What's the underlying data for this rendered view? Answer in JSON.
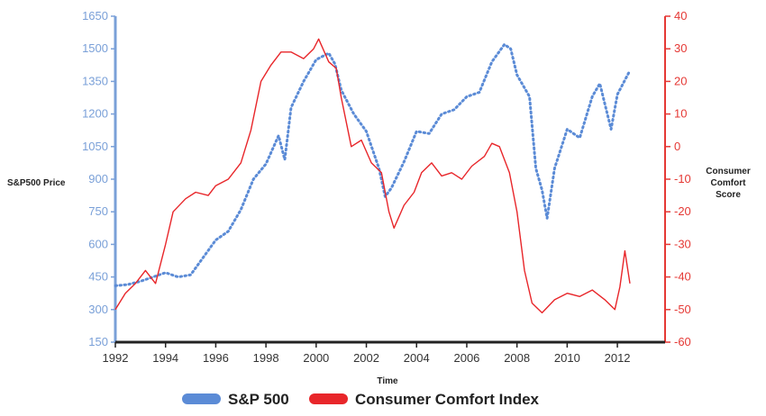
{
  "chart_data": {
    "type": "line",
    "title": "",
    "xlabel": "Time",
    "ylabel_left": "S&P500 Price",
    "ylabel_right": [
      "Consumer",
      "Comfort",
      "Score"
    ],
    "x_ticks": [
      "1992",
      "1994",
      "1996",
      "1998",
      "2000",
      "2002",
      "2004",
      "2006",
      "2008",
      "2010",
      "2012"
    ],
    "y_left_ticks": [
      "150",
      "300",
      "450",
      "600",
      "750",
      "900",
      "1050",
      "1200",
      "1350",
      "1500",
      "1650"
    ],
    "y_right_ticks": [
      "-60",
      "-50",
      "-40",
      "-30",
      "-20",
      "-10",
      "0",
      "10",
      "20",
      "30",
      "40"
    ],
    "x_range": [
      1992,
      2013.9
    ],
    "y_left_range": [
      150,
      1650
    ],
    "y_right_range": [
      -60,
      40
    ],
    "legend_position": "bottom",
    "series": [
      {
        "name": "S&P 500",
        "axis": "left",
        "color": "#5b8bd6",
        "style": "dotted",
        "points": [
          [
            1992.0,
            410
          ],
          [
            1992.5,
            415
          ],
          [
            1993.0,
            430
          ],
          [
            1993.5,
            450
          ],
          [
            1994.0,
            470
          ],
          [
            1994.5,
            450
          ],
          [
            1995.0,
            460
          ],
          [
            1995.5,
            540
          ],
          [
            1996.0,
            620
          ],
          [
            1996.5,
            660
          ],
          [
            1997.0,
            760
          ],
          [
            1997.5,
            900
          ],
          [
            1998.0,
            970
          ],
          [
            1998.5,
            1100
          ],
          [
            1998.75,
            990
          ],
          [
            1999.0,
            1230
          ],
          [
            1999.5,
            1350
          ],
          [
            2000.0,
            1450
          ],
          [
            2000.5,
            1480
          ],
          [
            2000.75,
            1430
          ],
          [
            2001.0,
            1310
          ],
          [
            2001.5,
            1200
          ],
          [
            2002.0,
            1120
          ],
          [
            2002.5,
            950
          ],
          [
            2002.75,
            820
          ],
          [
            2003.0,
            860
          ],
          [
            2003.5,
            980
          ],
          [
            2004.0,
            1120
          ],
          [
            2004.5,
            1110
          ],
          [
            2005.0,
            1200
          ],
          [
            2005.5,
            1220
          ],
          [
            2006.0,
            1280
          ],
          [
            2006.5,
            1300
          ],
          [
            2007.0,
            1440
          ],
          [
            2007.5,
            1520
          ],
          [
            2007.75,
            1500
          ],
          [
            2008.0,
            1380
          ],
          [
            2008.5,
            1280
          ],
          [
            2008.75,
            950
          ],
          [
            2009.0,
            850
          ],
          [
            2009.2,
            720
          ],
          [
            2009.5,
            950
          ],
          [
            2010.0,
            1130
          ],
          [
            2010.5,
            1090
          ],
          [
            2011.0,
            1280
          ],
          [
            2011.3,
            1340
          ],
          [
            2011.75,
            1130
          ],
          [
            2012.0,
            1290
          ],
          [
            2012.5,
            1400
          ]
        ]
      },
      {
        "name": "Consumer Comfort Index",
        "axis": "right",
        "color": "#e8262a",
        "style": "solid",
        "points": [
          [
            1992.0,
            -50
          ],
          [
            1992.4,
            -45
          ],
          [
            1992.8,
            -42
          ],
          [
            1993.2,
            -38
          ],
          [
            1993.6,
            -42
          ],
          [
            1994.0,
            -30
          ],
          [
            1994.3,
            -20
          ],
          [
            1994.8,
            -16
          ],
          [
            1995.2,
            -14
          ],
          [
            1995.7,
            -15
          ],
          [
            1996.0,
            -12
          ],
          [
            1996.5,
            -10
          ],
          [
            1997.0,
            -5
          ],
          [
            1997.4,
            5
          ],
          [
            1997.8,
            20
          ],
          [
            1998.2,
            25
          ],
          [
            1998.6,
            29
          ],
          [
            1999.0,
            29
          ],
          [
            1999.5,
            27
          ],
          [
            1999.9,
            30
          ],
          [
            2000.1,
            33
          ],
          [
            2000.5,
            26
          ],
          [
            2000.8,
            24
          ],
          [
            2001.0,
            15
          ],
          [
            2001.4,
            0
          ],
          [
            2001.8,
            2
          ],
          [
            2002.2,
            -5
          ],
          [
            2002.6,
            -8
          ],
          [
            2002.9,
            -20
          ],
          [
            2003.1,
            -25
          ],
          [
            2003.5,
            -18
          ],
          [
            2003.9,
            -14
          ],
          [
            2004.2,
            -8
          ],
          [
            2004.6,
            -5
          ],
          [
            2005.0,
            -9
          ],
          [
            2005.4,
            -8
          ],
          [
            2005.8,
            -10
          ],
          [
            2006.2,
            -6
          ],
          [
            2006.7,
            -3
          ],
          [
            2007.0,
            1
          ],
          [
            2007.3,
            0
          ],
          [
            2007.7,
            -8
          ],
          [
            2008.0,
            -20
          ],
          [
            2008.3,
            -38
          ],
          [
            2008.6,
            -48
          ],
          [
            2009.0,
            -51
          ],
          [
            2009.5,
            -47
          ],
          [
            2010.0,
            -45
          ],
          [
            2010.5,
            -46
          ],
          [
            2011.0,
            -44
          ],
          [
            2011.5,
            -47
          ],
          [
            2011.9,
            -50
          ],
          [
            2012.1,
            -43
          ],
          [
            2012.3,
            -32
          ],
          [
            2012.5,
            -42
          ]
        ]
      }
    ]
  }
}
